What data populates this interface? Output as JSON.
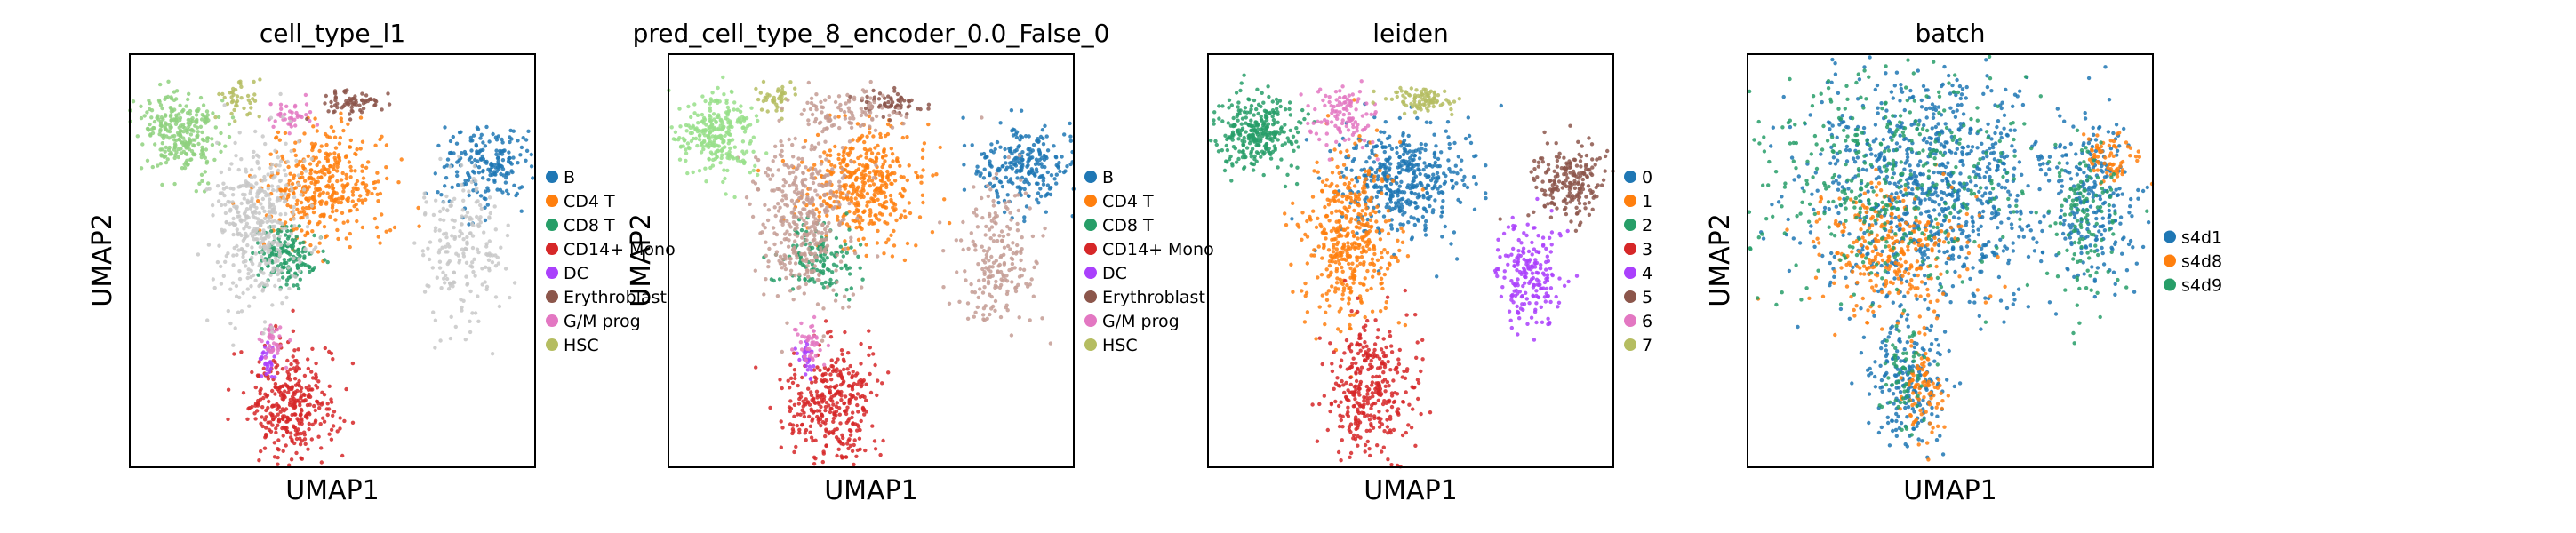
{
  "figure": {
    "panels": [
      {
        "title": "cell_type_l1",
        "xlabel": "UMAP1",
        "ylabel": "UMAP2",
        "legend": [
          {
            "label": "B",
            "color": "#1f77b4"
          },
          {
            "label": "CD4 T",
            "color": "#ff7f0e"
          },
          {
            "label": "CD8 T",
            "color": "#279e68"
          },
          {
            "label": "CD14+ Mono",
            "color": "#d62728"
          },
          {
            "label": "DC",
            "color": "#aa40fc"
          },
          {
            "label": "Erythroblast",
            "color": "#8c564b"
          },
          {
            "label": "G/M prog",
            "color": "#e377c2"
          },
          {
            "label": "HSC",
            "color": "#b5bd61"
          }
        ]
      },
      {
        "title": "pred_cell_type_8_encoder_0.0_False_0",
        "xlabel": "UMAP1",
        "ylabel": "UMAP2",
        "legend": [
          {
            "label": "B",
            "color": "#1f77b4"
          },
          {
            "label": "CD4 T",
            "color": "#ff7f0e"
          },
          {
            "label": "CD8 T",
            "color": "#279e68"
          },
          {
            "label": "CD14+ Mono",
            "color": "#d62728"
          },
          {
            "label": "DC",
            "color": "#aa40fc"
          },
          {
            "label": "Erythroblast",
            "color": "#8c564b"
          },
          {
            "label": "G/M prog",
            "color": "#e377c2"
          },
          {
            "label": "HSC",
            "color": "#b5bd61"
          }
        ]
      },
      {
        "title": "leiden",
        "xlabel": "UMAP1",
        "ylabel": "",
        "legend": [
          {
            "label": "0",
            "color": "#1f77b4"
          },
          {
            "label": "1",
            "color": "#ff7f0e"
          },
          {
            "label": "2",
            "color": "#279e68"
          },
          {
            "label": "3",
            "color": "#d62728"
          },
          {
            "label": "4",
            "color": "#aa40fc"
          },
          {
            "label": "5",
            "color": "#8c564b"
          },
          {
            "label": "6",
            "color": "#e377c2"
          },
          {
            "label": "7",
            "color": "#b5bd61"
          }
        ]
      },
      {
        "title": "batch",
        "xlabel": "UMAP1",
        "ylabel": "UMAP2",
        "legend": [
          {
            "label": "s4d1",
            "color": "#1f77b4"
          },
          {
            "label": "s4d8",
            "color": "#ff7f0e"
          },
          {
            "label": "s4d9",
            "color": "#279e68"
          }
        ]
      }
    ]
  },
  "chart_data": [
    {
      "type": "scatter",
      "title": "cell_type_l1",
      "xlabel": "UMAP1",
      "ylabel": "UMAP2",
      "xticks": false,
      "yticks": false,
      "grid": false,
      "legend_placement": "right",
      "series": [
        {
          "name": "B",
          "color": "#1f77b4",
          "clusters": [
            {
              "x": 8.8,
              "y": 6.8,
              "sx": 0.6,
              "sy": 0.5,
              "n": 200
            }
          ]
        },
        {
          "name": "CD4 T",
          "color": "#ff7f0e",
          "clusters": [
            {
              "x": 4.8,
              "y": 6.3,
              "sx": 0.75,
              "sy": 0.7,
              "n": 380
            }
          ]
        },
        {
          "name": "CD8 T",
          "color": "#279e68",
          "clusters": [
            {
              "x": 3.9,
              "y": 4.6,
              "sx": 0.4,
              "sy": 0.35,
              "n": 160
            }
          ]
        },
        {
          "name": "CD14+ Mono",
          "color": "#d62728",
          "clusters": [
            {
              "x": 4.0,
              "y": 1.0,
              "sx": 0.55,
              "sy": 0.75,
              "n": 340
            }
          ]
        },
        {
          "name": "DC",
          "color": "#aa40fc",
          "clusters": [
            {
              "x": 3.4,
              "y": 2.1,
              "sx": 0.1,
              "sy": 0.2,
              "n": 30
            }
          ]
        },
        {
          "name": "Erythroblast",
          "color": "#8c564b",
          "clusters": [
            {
              "x": 5.5,
              "y": 8.3,
              "sx": 0.4,
              "sy": 0.15,
              "n": 70
            }
          ]
        },
        {
          "name": "G/M prog",
          "color": "#e377c2",
          "clusters": [
            {
              "x": 3.5,
              "y": 2.6,
              "sx": 0.2,
              "sy": 0.25,
              "n": 40
            },
            {
              "x": 4.0,
              "y": 8.0,
              "sx": 0.3,
              "sy": 0.2,
              "n": 40
            }
          ]
        },
        {
          "name": "HSC",
          "color": "#b5bd61",
          "clusters": [
            {
              "x": 2.7,
              "y": 8.4,
              "sx": 0.25,
              "sy": 0.2,
              "n": 40
            }
          ]
        },
        {
          "name": "",
          "color": "#8fd17f",
          "clusters": [
            {
              "x": 1.2,
              "y": 7.6,
              "sx": 0.5,
              "sy": 0.45,
              "n": 280
            }
          ]
        },
        {
          "name": "",
          "color": "#c8c8c8",
          "clusters": [
            {
              "x": 3.2,
              "y": 5.5,
              "sx": 0.55,
              "sy": 1.0,
              "n": 420
            },
            {
              "x": 8.2,
              "y": 4.8,
              "sx": 0.55,
              "sy": 1.0,
              "n": 200
            }
          ]
        }
      ]
    },
    {
      "type": "scatter",
      "title": "pred_cell_type_8_encoder_0.0_False_0",
      "xlabel": "UMAP1",
      "ylabel": "UMAP2",
      "xticks": false,
      "yticks": false,
      "grid": false,
      "legend_placement": "right",
      "series": [
        {
          "name": "B",
          "color": "#1f77b4",
          "clusters": [
            {
              "x": 8.8,
              "y": 6.8,
              "sx": 0.6,
              "sy": 0.5,
              "n": 240
            }
          ]
        },
        {
          "name": "CD4 T",
          "color": "#ff7f0e",
          "clusters": [
            {
              "x": 4.8,
              "y": 6.3,
              "sx": 0.75,
              "sy": 0.7,
              "n": 400
            }
          ]
        },
        {
          "name": "CD8 T",
          "color": "#279e68",
          "clusters": [
            {
              "x": 3.7,
              "y": 4.6,
              "sx": 0.45,
              "sy": 0.4,
              "n": 130
            }
          ]
        },
        {
          "name": "CD14+ Mono",
          "color": "#d62728",
          "clusters": [
            {
              "x": 4.0,
              "y": 1.0,
              "sx": 0.55,
              "sy": 0.75,
              "n": 340
            }
          ]
        },
        {
          "name": "DC",
          "color": "#aa40fc",
          "clusters": [
            {
              "x": 3.4,
              "y": 2.1,
              "sx": 0.1,
              "sy": 0.2,
              "n": 30
            }
          ]
        },
        {
          "name": "Erythroblast",
          "color": "#8c564b",
          "clusters": [
            {
              "x": 5.5,
              "y": 8.3,
              "sx": 0.4,
              "sy": 0.15,
              "n": 60
            }
          ]
        },
        {
          "name": "G/M prog",
          "color": "#e377c2",
          "clusters": [
            {
              "x": 3.5,
              "y": 2.6,
              "sx": 0.2,
              "sy": 0.25,
              "n": 40
            }
          ]
        },
        {
          "name": "HSC",
          "color": "#b5bd61",
          "clusters": [
            {
              "x": 2.7,
              "y": 8.4,
              "sx": 0.25,
              "sy": 0.2,
              "n": 40
            }
          ]
        },
        {
          "name": "",
          "color": "#c49c94",
          "clusters": [
            {
              "x": 3.3,
              "y": 5.6,
              "sx": 0.6,
              "sy": 1.0,
              "n": 380
            },
            {
              "x": 8.1,
              "y": 4.6,
              "sx": 0.5,
              "sy": 0.9,
              "n": 200
            },
            {
              "x": 4.5,
              "y": 8.0,
              "sx": 0.7,
              "sy": 0.3,
              "n": 100
            }
          ]
        },
        {
          "name": "",
          "color": "#98df8a",
          "clusters": [
            {
              "x": 1.2,
              "y": 7.6,
              "sx": 0.5,
              "sy": 0.45,
              "n": 280
            }
          ]
        }
      ]
    },
    {
      "type": "scatter",
      "title": "leiden",
      "xlabel": "UMAP1",
      "ylabel": "",
      "xticks": false,
      "yticks": false,
      "grid": false,
      "legend_placement": "right",
      "series": [
        {
          "name": "0",
          "color": "#1f77b4",
          "clusters": [
            {
              "x": 4.9,
              "y": 6.5,
              "sx": 0.8,
              "sy": 0.7,
              "n": 440
            }
          ]
        },
        {
          "name": "1",
          "color": "#ff7f0e",
          "clusters": [
            {
              "x": 3.5,
              "y": 5.0,
              "sx": 0.55,
              "sy": 1.0,
              "n": 420
            }
          ]
        },
        {
          "name": "2",
          "color": "#279e68",
          "clusters": [
            {
              "x": 1.2,
              "y": 7.6,
              "sx": 0.5,
              "sy": 0.45,
              "n": 300
            }
          ]
        },
        {
          "name": "3",
          "color": "#d62728",
          "clusters": [
            {
              "x": 4.0,
              "y": 1.4,
              "sx": 0.55,
              "sy": 0.8,
              "n": 340
            }
          ]
        },
        {
          "name": "4",
          "color": "#aa40fc",
          "clusters": [
            {
              "x": 7.9,
              "y": 4.2,
              "sx": 0.4,
              "sy": 0.6,
              "n": 200
            }
          ]
        },
        {
          "name": "5",
          "color": "#8c564b",
          "clusters": [
            {
              "x": 8.9,
              "y": 6.4,
              "sx": 0.45,
              "sy": 0.5,
              "n": 200
            }
          ]
        },
        {
          "name": "6",
          "color": "#e377c2",
          "clusters": [
            {
              "x": 3.3,
              "y": 8.0,
              "sx": 0.4,
              "sy": 0.35,
              "n": 110
            }
          ]
        },
        {
          "name": "7",
          "color": "#b5bd61",
          "clusters": [
            {
              "x": 5.3,
              "y": 8.4,
              "sx": 0.4,
              "sy": 0.15,
              "n": 90
            }
          ]
        }
      ]
    },
    {
      "type": "scatter",
      "title": "batch",
      "xlabel": "UMAP1",
      "ylabel": "UMAP2",
      "xticks": false,
      "yticks": false,
      "grid": false,
      "legend_placement": "right",
      "series": [
        {
          "name": "s4d1",
          "color": "#1f77b4",
          "clusters": [
            {
              "x": 4.6,
              "y": 6.2,
              "sx": 1.6,
              "sy": 1.4,
              "n": 900
            },
            {
              "x": 8.6,
              "y": 6.0,
              "sx": 0.5,
              "sy": 1.0,
              "n": 220
            },
            {
              "x": 4.0,
              "y": 1.5,
              "sx": 0.45,
              "sy": 0.8,
              "n": 200
            }
          ]
        },
        {
          "name": "s4d8",
          "color": "#ff7f0e",
          "clusters": [
            {
              "x": 3.5,
              "y": 4.8,
              "sx": 1.0,
              "sy": 0.8,
              "n": 300
            },
            {
              "x": 8.9,
              "y": 7.0,
              "sx": 0.35,
              "sy": 0.3,
              "n": 70
            },
            {
              "x": 4.3,
              "y": 1.4,
              "sx": 0.3,
              "sy": 0.6,
              "n": 90
            }
          ]
        },
        {
          "name": "s4d9",
          "color": "#279e68",
          "clusters": [
            {
              "x": 3.5,
              "y": 6.5,
              "sx": 1.8,
              "sy": 1.5,
              "n": 420
            },
            {
              "x": 8.3,
              "y": 5.5,
              "sx": 0.45,
              "sy": 1.0,
              "n": 120
            },
            {
              "x": 3.9,
              "y": 1.6,
              "sx": 0.3,
              "sy": 0.6,
              "n": 60
            }
          ]
        }
      ]
    }
  ]
}
